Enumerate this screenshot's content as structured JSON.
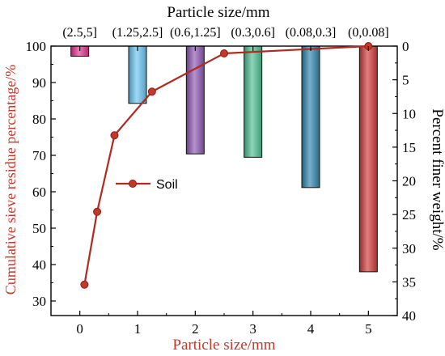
{
  "chart_data": {
    "type": "bar+line",
    "top_axis": {
      "title": "Particle size/mm",
      "categories": [
        "(2.5,5]",
        "(1.25,2.5]",
        "(0.6,1.25]",
        "(0.3,0.6]",
        "(0.08,0.3]",
        "(0,0.08]"
      ]
    },
    "bottom_axis": {
      "title": "Particle size/mm",
      "range": [
        -0.5,
        5.5
      ],
      "ticks": [
        0,
        1,
        2,
        3,
        4,
        5
      ],
      "tick_labels": [
        "0",
        "1",
        "2",
        "3",
        "4",
        "5"
      ]
    },
    "left_axis": {
      "title": "Cumulative sieve residue percentage/%",
      "range": [
        26,
        100
      ],
      "ticks": [
        30,
        40,
        50,
        60,
        70,
        80,
        90,
        100
      ],
      "tick_labels": [
        "30",
        "40",
        "50",
        "60",
        "70",
        "80",
        "90",
        "100"
      ]
    },
    "right_axis": {
      "title": "Percent finer weight/%",
      "range": [
        0,
        40
      ],
      "inverted": true,
      "ticks": [
        0,
        5,
        10,
        15,
        20,
        25,
        30,
        35,
        40
      ],
      "tick_labels": [
        "0",
        "5",
        "10",
        "15",
        "20",
        "25",
        "30",
        "35",
        "40"
      ]
    },
    "bars": {
      "axis": "right",
      "x": [
        0,
        1,
        2,
        3,
        4,
        5
      ],
      "values": [
        1.5,
        8.5,
        16.0,
        16.5,
        21.0,
        33.5
      ],
      "colors": [
        "#e5338f",
        "#69c6f2",
        "#8e58b3",
        "#4fbf92",
        "#2f86ad",
        "#d33a3a"
      ]
    },
    "series": [
      {
        "name": "Soil",
        "type": "line",
        "axis": "left",
        "x": [
          0.08,
          0.3,
          0.6,
          1.25,
          2.5,
          5.0
        ],
        "y": [
          34.5,
          54.5,
          75.5,
          87.5,
          98.0,
          100.0
        ],
        "color": "#c0392b"
      }
    ],
    "legend": {
      "placement": "middle-left"
    }
  }
}
